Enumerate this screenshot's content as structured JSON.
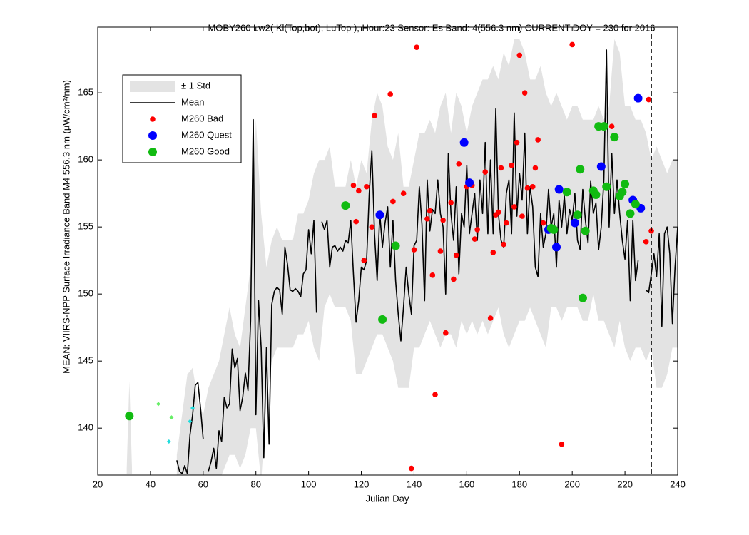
{
  "chart_data": {
    "type": "line",
    "title": "MOBY260   Lw2( Kl(Top,bot), LuTop ),   Hour:23 Sensor: Es Band: 4(556.3 nm)   CURRENT DOY = 230 for 2016",
    "x_label": "Julian Day",
    "y_label": "MEAN: VIIRS-NPP Surface Irradiance Band M4 556.3 nm (µW/cm²/nm)",
    "xlim": [
      20,
      240
    ],
    "xticks": [
      20,
      40,
      60,
      80,
      100,
      120,
      140,
      160,
      180,
      200,
      220,
      240
    ],
    "ylim": [
      136.5,
      169.9
    ],
    "yticks": [
      140,
      145,
      150,
      155,
      160,
      165
    ],
    "vline_x": 230,
    "legend": "upper left",
    "series": [
      {
        "name": "± 1 Std",
        "kind": "band",
        "color": "#e3e3e3",
        "x": [
          31,
          32,
          33,
          34,
          50,
          52,
          54,
          56,
          58,
          60,
          62,
          64,
          66,
          68,
          70,
          72,
          74,
          76,
          78,
          80,
          82,
          84,
          86,
          88,
          90,
          92,
          94,
          96,
          98,
          100,
          102,
          104,
          106,
          108,
          110,
          112,
          114,
          116,
          118,
          120,
          122,
          124,
          126,
          128,
          130,
          132,
          134,
          136,
          138,
          140,
          142,
          144,
          146,
          148,
          150,
          152,
          154,
          156,
          158,
          160,
          162,
          164,
          166,
          168,
          170,
          172,
          174,
          176,
          178,
          180,
          182,
          184,
          186,
          188,
          190,
          192,
          194,
          196,
          198,
          200,
          202,
          204,
          206,
          208,
          210,
          212,
          214,
          216,
          218,
          220,
          222,
          224,
          226,
          228,
          230,
          232,
          234,
          236,
          238,
          240
        ],
        "upper": [
          137,
          143.5,
          137,
          null,
          138,
          141,
          144,
          144.5,
          142,
          141,
          143,
          144,
          145,
          147,
          149,
          147,
          146,
          149,
          152,
          163,
          156,
          152,
          154,
          155,
          154,
          154,
          154,
          156,
          156,
          157,
          159,
          160,
          160,
          161,
          158,
          158,
          158,
          160,
          158,
          160,
          159,
          163,
          165,
          164,
          161,
          160,
          162,
          158,
          158,
          160,
          162,
          162,
          163,
          162,
          164,
          165,
          162,
          165,
          164,
          162,
          164,
          165,
          166,
          166,
          167,
          166,
          168,
          167,
          169,
          169,
          168,
          166,
          166,
          167,
          165,
          164,
          165,
          164,
          163,
          164,
          164,
          163,
          163,
          163,
          164,
          163,
          164,
          169,
          168,
          164,
          164,
          163,
          163,
          162,
          160,
          161,
          160,
          159,
          160,
          160
        ],
        "lower": [
          136.6,
          136.6,
          136.6,
          null,
          136,
          136,
          136,
          136,
          136,
          136,
          136,
          136,
          136,
          137,
          138,
          138,
          137,
          138,
          140,
          140,
          136,
          142,
          145,
          146,
          146,
          146,
          146,
          147,
          147,
          148,
          146,
          145,
          149,
          150,
          149,
          149,
          149,
          148,
          144,
          144,
          145,
          146,
          147,
          147,
          146,
          145,
          143,
          143,
          143,
          146,
          146,
          147,
          148,
          147,
          146,
          147,
          147,
          146,
          148,
          147,
          148,
          147,
          148,
          147,
          148,
          149,
          147,
          146,
          147,
          148,
          148,
          149,
          148,
          147,
          146,
          149,
          149,
          148,
          149,
          149,
          149,
          148,
          148,
          150,
          148,
          148,
          147,
          146,
          148,
          146,
          145,
          146,
          146,
          145,
          146,
          143,
          143,
          144,
          146,
          146
        ]
      },
      {
        "name": "Mean",
        "kind": "line",
        "color": "#000000",
        "x": [
          50,
          51,
          52,
          53,
          54,
          55,
          56,
          57,
          58,
          59,
          60,
          61,
          62,
          63,
          64,
          65,
          66,
          67,
          68,
          69,
          70,
          71,
          72,
          73,
          74,
          75,
          76,
          77,
          78,
          79,
          80,
          81,
          82,
          83,
          84,
          85,
          86,
          87,
          88,
          89,
          90,
          91,
          92,
          93,
          94,
          95,
          96,
          97,
          98,
          99,
          100,
          101,
          102,
          103,
          104,
          105,
          106,
          107,
          108,
          109,
          110,
          111,
          112,
          113,
          114,
          115,
          116,
          117,
          118,
          119,
          120,
          121,
          122,
          123,
          124,
          125,
          126,
          127,
          128,
          129,
          130,
          131,
          132,
          133,
          134,
          135,
          136,
          137,
          138,
          139,
          140,
          141,
          142,
          143,
          144,
          145,
          146,
          147,
          148,
          149,
          150,
          151,
          152,
          153,
          154,
          155,
          156,
          157,
          158,
          159,
          160,
          161,
          162,
          163,
          164,
          165,
          166,
          167,
          168,
          169,
          170,
          171,
          172,
          173,
          174,
          175,
          176,
          177,
          178,
          179,
          180,
          181,
          182,
          183,
          184,
          185,
          186,
          187,
          188,
          189,
          190,
          191,
          192,
          193,
          194,
          195,
          196,
          197,
          198,
          199,
          200,
          201,
          202,
          203,
          204,
          205,
          206,
          207,
          208,
          209,
          210,
          211,
          212,
          213,
          214,
          215,
          216,
          217,
          218,
          219,
          220,
          221,
          222,
          223,
          224,
          225,
          226,
          227,
          228,
          229,
          230,
          231,
          232,
          233,
          234,
          235,
          236,
          237,
          238,
          239,
          240
        ],
        "values": [
          137.6,
          136.8,
          136.6,
          137.2,
          136.6,
          139.5,
          141,
          143.2,
          143.4,
          141.5,
          139.2,
          null,
          136.8,
          137.5,
          138.5,
          137,
          139.8,
          139,
          142.3,
          141.5,
          141.8,
          145.9,
          144.5,
          145.2,
          141.3,
          142.3,
          144.1,
          142.8,
          148,
          163,
          141,
          149.5,
          146,
          137.8,
          146,
          138.8,
          149.2,
          150.2,
          150.5,
          150.3,
          148.5,
          153.5,
          152.2,
          150.3,
          150.2,
          150.4,
          150.2,
          149.8,
          151.5,
          151.8,
          154.8,
          153,
          155.5,
          148.6,
          null,
          155.4,
          154.8,
          155.5,
          152,
          153.5,
          153.6,
          153.2,
          153.5,
          153.2,
          154,
          153.8,
          155.5,
          151.5,
          147.9,
          149.5,
          152,
          151.8,
          152.5,
          157.5,
          160.7,
          154.5,
          151,
          156,
          153.5,
          155.3,
          156.5,
          152,
          155.5,
          151,
          148.5,
          146.5,
          149,
          152,
          150,
          148.5,
          153.6,
          154,
          158,
          155.2,
          149.5,
          158.5,
          154.7,
          156.3,
          156,
          158.5,
          156,
          155,
          150,
          160.5,
          156,
          154,
          158,
          151.5,
          156,
          155,
          159.6,
          154.5,
          156,
          157.5,
          154,
          158.5,
          156,
          161.3,
          154.5,
          160,
          154.5,
          163.8,
          156,
          154,
          153.5,
          157.5,
          158.5,
          154.5,
          163.5,
          155.8,
          159,
          157,
          162,
          154.5,
          158,
          156.5,
          152,
          151.3,
          156,
          153.5,
          154.5,
          157.8,
          155,
          156,
          152,
          157,
          155,
          157.3,
          154.5,
          156.3,
          155.5,
          157.5,
          154,
          153.3,
          157.8,
          155.5,
          153.8,
          158.4,
          156,
          156.8,
          153.3,
          155,
          158.5,
          168.2,
          155,
          160.5,
          156,
          158.5,
          156,
          154,
          152.6,
          155.5,
          149.5,
          155.5,
          151,
          152.5,
          null,
          null,
          150.3,
          150.1,
          151.5,
          153,
          151.3,
          154.5,
          147.6,
          154.5,
          155,
          153,
          147.8,
          152,
          155
        ]
      },
      {
        "name": "M260 Bad",
        "kind": "dot",
        "color": "#ff0000",
        "x": [
          117,
          118,
          119,
          121,
          122,
          124,
          125,
          131,
          132,
          136,
          139,
          140,
          141,
          145,
          146,
          147,
          148,
          150,
          151,
          152,
          154,
          155,
          156,
          157,
          160,
          162,
          163,
          164,
          167,
          169,
          170,
          171,
          172,
          173,
          174,
          175,
          177,
          178,
          179,
          180,
          181,
          182,
          183,
          185,
          186,
          187,
          189,
          196,
          200,
          215,
          228,
          229,
          230
        ],
        "values": [
          158.1,
          155.4,
          157.7,
          152.5,
          158,
          155,
          163.3,
          164.9,
          156.9,
          157.5,
          137,
          153.3,
          168.4,
          155.6,
          156.2,
          151.4,
          142.5,
          153.2,
          155.5,
          147.1,
          156.8,
          151.1,
          152.9,
          159.7,
          158,
          158.1,
          154.1,
          154.8,
          159.1,
          148.2,
          153.1,
          155.9,
          156.1,
          159.4,
          153.7,
          155.3,
          159.6,
          156.5,
          161.3,
          167.8,
          155.8,
          165,
          157.9,
          158,
          159.4,
          161.5,
          155.3,
          138.8,
          168.6,
          162.5,
          153.9,
          164.5,
          154.7
        ]
      },
      {
        "name": "M260 Quest",
        "kind": "big-dot",
        "color": "#0000ff",
        "x": [
          127,
          159,
          161,
          191,
          194,
          195,
          201,
          211,
          223,
          225,
          226
        ],
        "values": [
          155.9,
          161.3,
          158.3,
          154.8,
          153.5,
          157.8,
          155.3,
          159.5,
          157,
          164.6,
          156.4
        ]
      },
      {
        "name": "M260 Good",
        "kind": "big-dot",
        "color": "#11bb11",
        "x": [
          32,
          114,
          128,
          133,
          192,
          193,
          198,
          202,
          203,
          204,
          205,
          208,
          209,
          210,
          212,
          213,
          216,
          218,
          219,
          220,
          222,
          224
        ],
        "values": [
          140.9,
          156.6,
          148.1,
          153.6,
          154.9,
          154.8,
          157.6,
          155.9,
          159.3,
          149.7,
          154.7,
          157.7,
          157.4,
          162.5,
          162.5,
          158,
          161.7,
          157.3,
          157.6,
          158.2,
          156,
          156.7
        ]
      },
      {
        "kind": "diamond",
        "color": "#66ee66",
        "x": [
          43,
          48
        ],
        "values": [
          141.8,
          140.8
        ]
      },
      {
        "kind": "diamond",
        "color": "#22dddd",
        "x": [
          47,
          55,
          56
        ],
        "values": [
          139,
          140.5,
          141.5
        ]
      }
    ]
  }
}
